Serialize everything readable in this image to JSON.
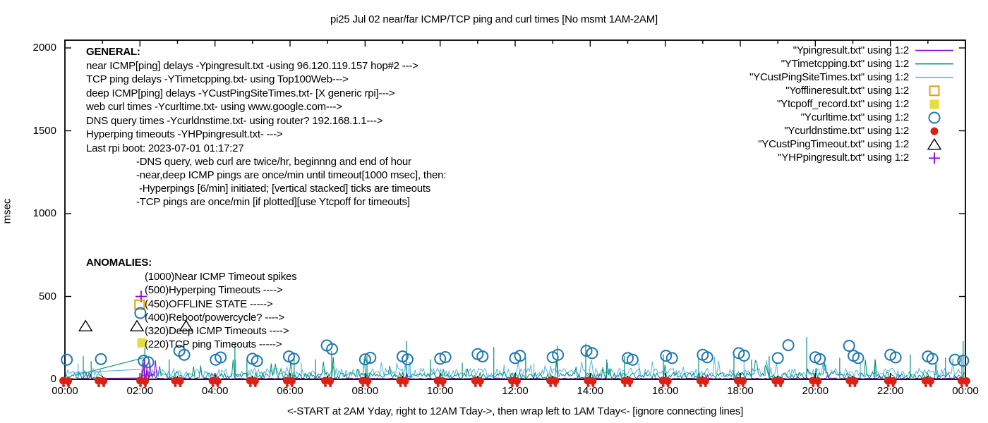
{
  "chart_data": {
    "type": "line",
    "title": "pi25 Jul 02  near/far ICMP/TCP ping and curl times [No msmt 1AM-2AM]",
    "ylabel": "msec",
    "xlabel": "<-START at 2AM Yday, right to 12AM Tday->, then wrap left to 1AM Tday<- [ignore connecting lines]",
    "y_axis": {
      "ticks": [
        0,
        500,
        1000,
        1500,
        2000
      ],
      "range": [
        0,
        2047
      ],
      "unit": "msec"
    },
    "x_axis": {
      "tick_labels": [
        "00:00",
        "02:00",
        "04:00",
        "06:00",
        "08:00",
        "10:00",
        "12:00",
        "14:00",
        "16:00",
        "18:00",
        "20:00",
        "22:00",
        "00:00"
      ],
      "hours_span": 24,
      "major_every_hours": 2,
      "minor_every_hours": 1,
      "no_measurement_window_hours": [
        1.0,
        2.0
      ]
    },
    "legend": [
      {
        "label": "\"Ypingresult.txt\" using 1:2",
        "sample": "line",
        "color": "#9400D3"
      },
      {
        "label": "\"YTimetcpping.txt\" using 1:2",
        "sample": "line",
        "color": "#009173"
      },
      {
        "label": "\"YCustPingSiteTimes.txt\" using 1:2",
        "sample": "line",
        "color": "#56B4E9"
      },
      {
        "label": "\"Yofflineresult.txt\" using 1:2",
        "sample": "square-open",
        "color": "#E69F00"
      },
      {
        "label": "\"Ytcpoff_record.txt\" using 1:2",
        "sample": "square-filled",
        "color": "#E8DC3C"
      },
      {
        "label": "\"Ycurltime.txt\" using 1:2",
        "sample": "circle-open",
        "color": "#1F78B4"
      },
      {
        "label": "\"Ycurldnstime.txt\" using 1:2",
        "sample": "circle-filled",
        "color": "#DE1F14"
      },
      {
        "label": "\"YCustPingTimeout.txt\" using 1:2",
        "sample": "triangle-open",
        "color": "#000000"
      },
      {
        "label": "\"YHPpingresult.txt\" using 1:2",
        "sample": "plus",
        "color": "#9400D3"
      }
    ],
    "noise_seed": 1337,
    "series": {
      "near_icmp": {
        "name": "Ypingresult.txt",
        "color": "#9400D3",
        "style": "line",
        "base_msec": [
          1,
          8
        ],
        "spike_chance": 0.02,
        "spike_add_msec": [
          8,
          26
        ],
        "cluster": {
          "hours": [
            2.0,
            2.45
          ],
          "max_msec": 120
        },
        "spikes": [
          [
            2.07,
            60
          ],
          [
            2.12,
            125
          ],
          [
            2.18,
            85
          ],
          [
            2.25,
            45
          ],
          [
            2.33,
            30
          ]
        ]
      },
      "tcp_ping": {
        "name": "YTimetcpping.txt",
        "color": "#009173",
        "style": "line",
        "base_msec": [
          4,
          42
        ],
        "spike_chance": 0.06,
        "spike_add_msec": [
          30,
          110
        ],
        "spikes": [
          [
            0.49,
            140
          ],
          [
            0.7,
            110
          ],
          [
            2.13,
            190
          ],
          [
            2.78,
            120
          ],
          [
            4.53,
            215
          ],
          [
            4.85,
            130
          ],
          [
            6.11,
            150
          ],
          [
            6.68,
            120
          ],
          [
            7.11,
            170
          ],
          [
            8.05,
            140
          ],
          [
            9.1,
            230
          ],
          [
            9.74,
            120
          ],
          [
            10.59,
            100
          ],
          [
            11.43,
            195
          ],
          [
            12.28,
            130
          ],
          [
            13.13,
            200
          ],
          [
            13.88,
            215
          ],
          [
            14.44,
            120
          ],
          [
            14.91,
            140
          ],
          [
            15.95,
            150
          ],
          [
            16.89,
            130
          ],
          [
            17.83,
            170
          ],
          [
            18.3,
            120
          ],
          [
            18.77,
            140
          ],
          [
            19.77,
            255
          ],
          [
            20.65,
            130
          ],
          [
            21.59,
            120
          ],
          [
            22.53,
            150
          ],
          [
            23.47,
            130
          ],
          [
            23.94,
            230
          ]
        ]
      },
      "deep_icmp": {
        "name": "YCustPingSiteTimes.txt",
        "color": "#56B4E9",
        "style": "line",
        "base_msec": [
          12,
          67
        ],
        "spike_chance": 0.05,
        "spike_add_msec": [
          30,
          80
        ],
        "spikes": [
          [
            0.35,
            95
          ],
          [
            4.55,
            120
          ],
          [
            6.3,
            100
          ],
          [
            9.2,
            105
          ],
          [
            12.5,
            95
          ],
          [
            15.3,
            100
          ],
          [
            18.1,
            115
          ],
          [
            21.2,
            100
          ],
          [
            23.9,
            140
          ]
        ]
      },
      "web_curl": {
        "name": "Ycurltime.txt",
        "marker": "circle-open",
        "color": "#1F78B4",
        "points": [
          [
            0.05,
            118
          ],
          [
            0.96,
            122
          ],
          [
            2.1,
            112
          ],
          [
            2.22,
            103
          ],
          [
            3.05,
            172
          ],
          [
            3.18,
            148
          ],
          [
            4.02,
            118
          ],
          [
            4.15,
            132
          ],
          [
            5.0,
            124
          ],
          [
            5.12,
            110
          ],
          [
            5.97,
            138
          ],
          [
            6.1,
            124
          ],
          [
            6.98,
            204
          ],
          [
            7.12,
            182
          ],
          [
            8.0,
            120
          ],
          [
            8.14,
            130
          ],
          [
            9.0,
            138
          ],
          [
            9.13,
            120
          ],
          [
            10.0,
            124
          ],
          [
            10.14,
            134
          ],
          [
            11.0,
            152
          ],
          [
            11.13,
            138
          ],
          [
            12.0,
            128
          ],
          [
            12.13,
            142
          ],
          [
            13.0,
            133
          ],
          [
            13.14,
            148
          ],
          [
            13.9,
            172
          ],
          [
            14.05,
            158
          ],
          [
            15.0,
            128
          ],
          [
            15.13,
            118
          ],
          [
            16.02,
            142
          ],
          [
            16.18,
            128
          ],
          [
            17.0,
            148
          ],
          [
            17.12,
            133
          ],
          [
            17.96,
            158
          ],
          [
            18.1,
            143
          ],
          [
            19.0,
            128
          ],
          [
            19.28,
            206
          ],
          [
            20.0,
            133
          ],
          [
            20.12,
            122
          ],
          [
            20.9,
            202
          ],
          [
            21.02,
            142
          ],
          [
            21.14,
            128
          ],
          [
            22.0,
            148
          ],
          [
            22.14,
            132
          ],
          [
            23.0,
            138
          ],
          [
            23.12,
            124
          ],
          [
            23.72,
            118
          ],
          [
            23.94,
            112
          ]
        ]
      },
      "dns_query": {
        "name": "Ycurldnstime.txt",
        "marker": "circle-filled",
        "color": "#DE1F14",
        "value_msec": 0,
        "hours": [
          0.02,
          0.96,
          2.07,
          3.0,
          4.0,
          5.0,
          5.98,
          7.0,
          8.0,
          9.0,
          10.0,
          11.0,
          11.98,
          13.0,
          14.0,
          14.98,
          16.0,
          17.0,
          18.0,
          19.0,
          20.0,
          20.98,
          22.0,
          23.0,
          23.96
        ]
      },
      "deep_icmp_timeouts": {
        "name": "YCustPingTimeout.txt",
        "marker": "triangle-open",
        "color": "#000000",
        "points": [
          [
            0.55,
            320
          ],
          [
            1.92,
            320
          ],
          [
            3.23,
            320
          ]
        ]
      },
      "hyperping_timeouts": {
        "name": "YHPpingresult.txt",
        "marker": "plus",
        "color": "#9400D3",
        "points": [
          [
            2.03,
            500
          ]
        ]
      },
      "offline_state": {
        "name": "Yofflineresult.txt",
        "marker": "square-open",
        "color": "#E69F00",
        "points": [
          [
            1.99,
            450
          ]
        ]
      },
      "reboot": {
        "marker": "circle-open",
        "color": "#1F78B4",
        "points": [
          [
            2.01,
            400
          ]
        ]
      },
      "tcp_ping_timeouts": {
        "name": "Ytcpoff_record.txt",
        "marker": "square-filled",
        "color": "#E8DC3C",
        "points": [
          [
            2.05,
            220
          ]
        ]
      }
    },
    "connecting_lines": [
      {
        "color": "#009173",
        "from": [
          0.3,
          25
        ],
        "to": [
          2.1,
          130
        ]
      },
      {
        "color": "#56B4E9",
        "from": [
          0.3,
          40
        ],
        "to": [
          2.0,
          60
        ]
      },
      {
        "color": "#9400D3",
        "from": [
          1.0,
          6
        ],
        "to": [
          2.0,
          8
        ]
      }
    ],
    "annotations": {
      "general": [
        "GENERAL:",
        "near ICMP[ping] delays -Ypingresult.txt -using 96.120.119.157 hop#2 --->",
        "TCP ping delays -YTimetcpping.txt- using Top100Web--->",
        "deep ICMP[ping] delays -YCustPingSiteTimes.txt- [X generic rpi]--->",
        "web curl times -Ycurltime.txt- using www.google.com--->",
        "DNS query times -Ycurldnstime.txt- using router? 192.168.1.1--->",
        "Hyperping timeouts -YHPpingresult.txt- --->",
        "Last rpi boot: 2023-07-01 01:17:27"
      ],
      "notes": [
        "-DNS query, web curl are twice/hr, beginnng and end of hour",
        "-near,deep ICMP pings are once/min until timeout[1000 msec], then:",
        " -Hyperpings [6/min] initiated; [vertical stacked] ticks are timeouts",
        "-TCP pings are once/min [if plotted][use Ytcpoff for timeouts]"
      ],
      "anomalies_header": "ANOMALIES:",
      "anomalies": [
        "(1000)Near ICMP Timeout spikes",
        "(500)Hyperping Timeouts ---->",
        "(450)OFFLINE STATE ----->",
        "(400)Reboot/powercycle? ---->",
        "(320)Deep ICMP Timeouts ---->",
        "(220)TCP ping Timeouts ----->"
      ]
    }
  }
}
